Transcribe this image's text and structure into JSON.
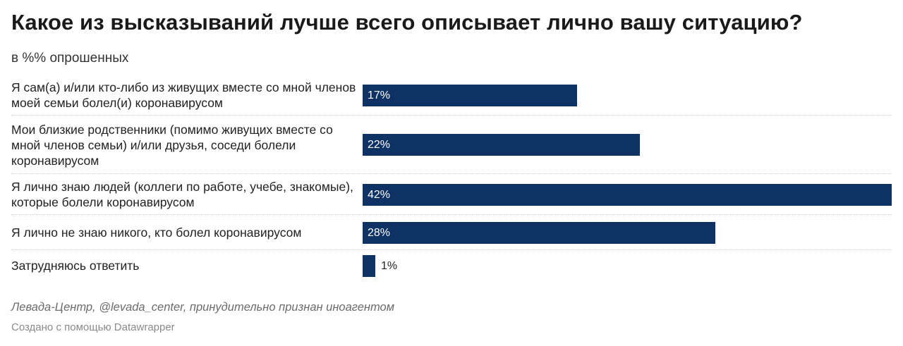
{
  "title": "Какое из высказываний лучше всего описывает лично вашу ситуацию?",
  "subtitle": "в %% опрошенных",
  "source": "Левада-Центр, @levada_center, принудительно признан иноагентом",
  "credit": "Создано с помощью Datawrapper",
  "colors": {
    "bar": "#0f3264",
    "label_inside": "#ffffff",
    "label_outside": "#222222"
  },
  "chart_data": {
    "type": "bar",
    "orientation": "horizontal",
    "categories": [
      "Я сам(а) и/или кто-либо из живущих вместе со мной членов моей семьи болел(и) коронавирусом",
      "Мои близкие родственники (помимо живущих вместе со мной членов семьи) и/или друзья, соседи болели коронавирусом",
      "Я лично знаю людей (коллеги по работе, учебе, знакомые), которые болели коронавирусом",
      "Я лично не знаю никого, кто болел коронавирусом",
      "Затрудняюсь ответить"
    ],
    "values": [
      17,
      22,
      42,
      28,
      1
    ],
    "value_labels": [
      "17%",
      "22%",
      "42%",
      "28%",
      "1%"
    ],
    "xlim": [
      0,
      42
    ],
    "grid": false,
    "legend": "none"
  }
}
